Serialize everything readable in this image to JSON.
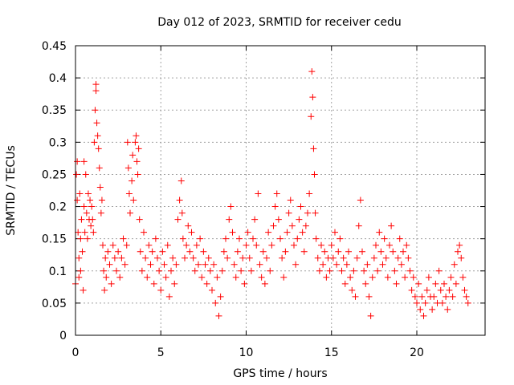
{
  "chart_data": {
    "type": "scatter",
    "title": "Day 012 of 2023, SRMTID for receiver cedu",
    "xlabel": "GPS time / hours",
    "ylabel": "SRMTID / TECUs",
    "xlim": [
      0,
      24
    ],
    "ylim": [
      0,
      0.45
    ],
    "xticks": [
      0,
      5,
      10,
      15,
      20
    ],
    "xtick_labels": [
      "0",
      "5",
      "10",
      "15",
      "20"
    ],
    "yticks": [
      0,
      0.05,
      0.1,
      0.15,
      0.2,
      0.25,
      0.3,
      0.35,
      0.4,
      0.45
    ],
    "ytick_labels": [
      "0",
      "0.05",
      "0.1",
      "0.15",
      "0.2",
      "0.25",
      "0.3",
      "0.35",
      "0.4",
      "0.45"
    ],
    "grid": true,
    "marker": "+",
    "series": [
      {
        "name": "SRMTID",
        "color": "#ff0000",
        "points": [
          [
            0.0,
            0.08
          ],
          [
            0.05,
            0.25
          ],
          [
            0.1,
            0.27
          ],
          [
            0.1,
            0.21
          ],
          [
            0.15,
            0.16
          ],
          [
            0.2,
            0.12
          ],
          [
            0.2,
            0.09
          ],
          [
            0.25,
            0.22
          ],
          [
            0.3,
            0.15
          ],
          [
            0.3,
            0.1
          ],
          [
            0.35,
            0.18
          ],
          [
            0.4,
            0.13
          ],
          [
            0.45,
            0.07
          ],
          [
            0.5,
            0.2
          ],
          [
            0.5,
            0.27
          ],
          [
            0.55,
            0.16
          ],
          [
            0.6,
            0.25
          ],
          [
            0.65,
            0.19
          ],
          [
            0.7,
            0.15
          ],
          [
            0.75,
            0.22
          ],
          [
            0.8,
            0.18
          ],
          [
            0.85,
            0.21
          ],
          [
            0.9,
            0.17
          ],
          [
            0.95,
            0.2
          ],
          [
            1.0,
            0.18
          ],
          [
            1.05,
            0.16
          ],
          [
            1.1,
            0.3
          ],
          [
            1.15,
            0.35
          ],
          [
            1.2,
            0.39
          ],
          [
            1.2,
            0.38
          ],
          [
            1.25,
            0.33
          ],
          [
            1.3,
            0.31
          ],
          [
            1.35,
            0.29
          ],
          [
            1.4,
            0.26
          ],
          [
            1.45,
            0.23
          ],
          [
            1.5,
            0.19
          ],
          [
            1.55,
            0.21
          ],
          [
            1.6,
            0.14
          ],
          [
            1.65,
            0.1
          ],
          [
            1.7,
            0.07
          ],
          [
            1.75,
            0.12
          ],
          [
            1.8,
            0.09
          ],
          [
            1.9,
            0.13
          ],
          [
            2.0,
            0.11
          ],
          [
            2.1,
            0.08
          ],
          [
            2.2,
            0.14
          ],
          [
            2.3,
            0.12
          ],
          [
            2.4,
            0.1
          ],
          [
            2.5,
            0.13
          ],
          [
            2.6,
            0.09
          ],
          [
            2.7,
            0.12
          ],
          [
            2.8,
            0.15
          ],
          [
            2.9,
            0.11
          ],
          [
            3.0,
            0.14
          ],
          [
            3.05,
            0.3
          ],
          [
            3.1,
            0.26
          ],
          [
            3.15,
            0.22
          ],
          [
            3.2,
            0.19
          ],
          [
            3.3,
            0.24
          ],
          [
            3.35,
            0.28
          ],
          [
            3.4,
            0.21
          ],
          [
            3.5,
            0.3
          ],
          [
            3.55,
            0.31
          ],
          [
            3.6,
            0.27
          ],
          [
            3.65,
            0.25
          ],
          [
            3.7,
            0.29
          ],
          [
            3.75,
            0.18
          ],
          [
            3.8,
            0.13
          ],
          [
            3.9,
            0.1
          ],
          [
            4.0,
            0.16
          ],
          [
            4.1,
            0.12
          ],
          [
            4.2,
            0.09
          ],
          [
            4.3,
            0.14
          ],
          [
            4.4,
            0.11
          ],
          [
            4.5,
            0.13
          ],
          [
            4.6,
            0.08
          ],
          [
            4.7,
            0.15
          ],
          [
            4.8,
            0.12
          ],
          [
            4.9,
            0.1
          ],
          [
            5.0,
            0.07
          ],
          [
            5.1,
            0.13
          ],
          [
            5.2,
            0.11
          ],
          [
            5.3,
            0.09
          ],
          [
            5.4,
            0.14
          ],
          [
            5.5,
            0.06
          ],
          [
            5.6,
            0.1
          ],
          [
            5.7,
            0.12
          ],
          [
            5.8,
            0.08
          ],
          [
            5.9,
            0.11
          ],
          [
            6.0,
            0.18
          ],
          [
            6.1,
            0.21
          ],
          [
            6.2,
            0.24
          ],
          [
            6.25,
            0.19
          ],
          [
            6.3,
            0.15
          ],
          [
            6.4,
            0.12
          ],
          [
            6.5,
            0.14
          ],
          [
            6.6,
            0.17
          ],
          [
            6.7,
            0.13
          ],
          [
            6.8,
            0.16
          ],
          [
            6.9,
            0.12
          ],
          [
            7.0,
            0.1
          ],
          [
            7.1,
            0.14
          ],
          [
            7.2,
            0.11
          ],
          [
            7.3,
            0.15
          ],
          [
            7.4,
            0.09
          ],
          [
            7.5,
            0.13
          ],
          [
            7.6,
            0.11
          ],
          [
            7.7,
            0.08
          ],
          [
            7.8,
            0.12
          ],
          [
            7.9,
            0.1
          ],
          [
            8.0,
            0.07
          ],
          [
            8.1,
            0.11
          ],
          [
            8.2,
            0.05
          ],
          [
            8.3,
            0.09
          ],
          [
            8.4,
            0.03
          ],
          [
            8.5,
            0.06
          ],
          [
            8.6,
            0.1
          ],
          [
            8.7,
            0.13
          ],
          [
            8.8,
            0.15
          ],
          [
            8.9,
            0.12
          ],
          [
            9.0,
            0.18
          ],
          [
            9.1,
            0.2
          ],
          [
            9.2,
            0.16
          ],
          [
            9.3,
            0.11
          ],
          [
            9.4,
            0.09
          ],
          [
            9.5,
            0.13
          ],
          [
            9.6,
            0.15
          ],
          [
            9.7,
            0.1
          ],
          [
            9.8,
            0.12
          ],
          [
            9.9,
            0.08
          ],
          [
            10.0,
            0.14
          ],
          [
            10.1,
            0.16
          ],
          [
            10.2,
            0.12
          ],
          [
            10.3,
            0.1
          ],
          [
            10.4,
            0.15
          ],
          [
            10.5,
            0.18
          ],
          [
            10.6,
            0.14
          ],
          [
            10.7,
            0.22
          ],
          [
            10.8,
            0.11
          ],
          [
            10.9,
            0.09
          ],
          [
            11.0,
            0.13
          ],
          [
            11.1,
            0.08
          ],
          [
            11.2,
            0.12
          ],
          [
            11.3,
            0.16
          ],
          [
            11.4,
            0.1
          ],
          [
            11.5,
            0.14
          ],
          [
            11.6,
            0.17
          ],
          [
            11.7,
            0.2
          ],
          [
            11.8,
            0.22
          ],
          [
            11.9,
            0.18
          ],
          [
            12.0,
            0.15
          ],
          [
            12.1,
            0.12
          ],
          [
            12.2,
            0.09
          ],
          [
            12.3,
            0.13
          ],
          [
            12.4,
            0.16
          ],
          [
            12.5,
            0.19
          ],
          [
            12.6,
            0.21
          ],
          [
            12.7,
            0.17
          ],
          [
            12.8,
            0.14
          ],
          [
            12.9,
            0.11
          ],
          [
            13.0,
            0.15
          ],
          [
            13.1,
            0.18
          ],
          [
            13.2,
            0.2
          ],
          [
            13.3,
            0.16
          ],
          [
            13.4,
            0.13
          ],
          [
            13.5,
            0.17
          ],
          [
            13.6,
            0.19
          ],
          [
            13.7,
            0.22
          ],
          [
            13.8,
            0.34
          ],
          [
            13.85,
            0.41
          ],
          [
            13.9,
            0.37
          ],
          [
            13.95,
            0.29
          ],
          [
            14.0,
            0.25
          ],
          [
            14.05,
            0.19
          ],
          [
            14.1,
            0.15
          ],
          [
            14.2,
            0.12
          ],
          [
            14.3,
            0.1
          ],
          [
            14.4,
            0.14
          ],
          [
            14.5,
            0.11
          ],
          [
            14.6,
            0.13
          ],
          [
            14.7,
            0.09
          ],
          [
            14.8,
            0.12
          ],
          [
            14.9,
            0.1
          ],
          [
            15.0,
            0.14
          ],
          [
            15.1,
            0.12
          ],
          [
            15.2,
            0.16
          ],
          [
            15.3,
            0.11
          ],
          [
            15.4,
            0.13
          ],
          [
            15.5,
            0.15
          ],
          [
            15.6,
            0.1
          ],
          [
            15.7,
            0.12
          ],
          [
            15.8,
            0.08
          ],
          [
            15.9,
            0.11
          ],
          [
            16.0,
            0.13
          ],
          [
            16.1,
            0.09
          ],
          [
            16.2,
            0.07
          ],
          [
            16.3,
            0.1
          ],
          [
            16.4,
            0.06
          ],
          [
            16.5,
            0.12
          ],
          [
            16.6,
            0.17
          ],
          [
            16.7,
            0.21
          ],
          [
            16.8,
            0.13
          ],
          [
            16.9,
            0.1
          ],
          [
            17.0,
            0.08
          ],
          [
            17.1,
            0.11
          ],
          [
            17.2,
            0.06
          ],
          [
            17.3,
            0.03
          ],
          [
            17.4,
            0.09
          ],
          [
            17.5,
            0.12
          ],
          [
            17.6,
            0.14
          ],
          [
            17.7,
            0.1
          ],
          [
            17.8,
            0.16
          ],
          [
            17.9,
            0.13
          ],
          [
            18.0,
            0.11
          ],
          [
            18.1,
            0.15
          ],
          [
            18.2,
            0.12
          ],
          [
            18.3,
            0.09
          ],
          [
            18.4,
            0.14
          ],
          [
            18.5,
            0.17
          ],
          [
            18.6,
            0.13
          ],
          [
            18.7,
            0.1
          ],
          [
            18.8,
            0.08
          ],
          [
            18.9,
            0.12
          ],
          [
            19.0,
            0.15
          ],
          [
            19.1,
            0.11
          ],
          [
            19.2,
            0.13
          ],
          [
            19.3,
            0.09
          ],
          [
            19.4,
            0.14
          ],
          [
            19.5,
            0.12
          ],
          [
            19.6,
            0.1
          ],
          [
            19.7,
            0.07
          ],
          [
            19.8,
            0.09
          ],
          [
            19.9,
            0.06
          ],
          [
            20.0,
            0.05
          ],
          [
            20.1,
            0.08
          ],
          [
            20.2,
            0.04
          ],
          [
            20.3,
            0.06
          ],
          [
            20.4,
            0.03
          ],
          [
            20.5,
            0.05
          ],
          [
            20.6,
            0.07
          ],
          [
            20.7,
            0.09
          ],
          [
            20.8,
            0.06
          ],
          [
            20.9,
            0.04
          ],
          [
            21.0,
            0.06
          ],
          [
            21.1,
            0.08
          ],
          [
            21.2,
            0.05
          ],
          [
            21.3,
            0.1
          ],
          [
            21.4,
            0.07
          ],
          [
            21.5,
            0.05
          ],
          [
            21.6,
            0.08
          ],
          [
            21.7,
            0.06
          ],
          [
            21.8,
            0.04
          ],
          [
            21.9,
            0.07
          ],
          [
            22.0,
            0.09
          ],
          [
            22.1,
            0.06
          ],
          [
            22.2,
            0.11
          ],
          [
            22.3,
            0.08
          ],
          [
            22.4,
            0.13
          ],
          [
            22.5,
            0.14
          ],
          [
            22.6,
            0.12
          ],
          [
            22.7,
            0.09
          ],
          [
            22.8,
            0.07
          ],
          [
            22.9,
            0.06
          ],
          [
            23.0,
            0.05
          ]
        ]
      }
    ]
  }
}
